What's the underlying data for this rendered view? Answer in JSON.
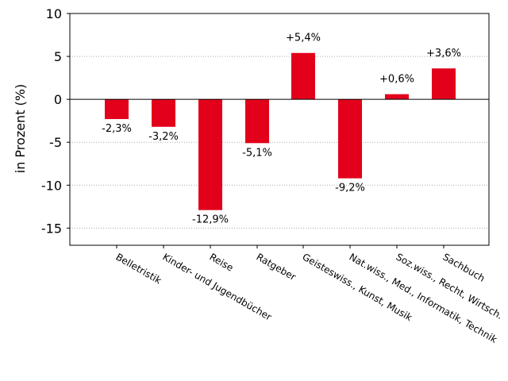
{
  "chart_data": {
    "type": "bar",
    "categories": [
      "Belletristik",
      "Kinder- und Jugendbücher",
      "Reise",
      "Ratgeber",
      "Geisteswiss., Kunst, Musik",
      "Nat.wiss., Med., Informatik, Technik",
      "Soz.wiss., Recht, Wirtsch.",
      "Sachbuch"
    ],
    "values": [
      -2.3,
      -3.2,
      -12.9,
      -5.1,
      5.4,
      -9.2,
      0.6,
      3.6
    ],
    "data_labels": [
      "-2,3%",
      "-3,2%",
      "-12,9%",
      "-5,1%",
      "+5,4%",
      "-9,2%",
      "+0,6%",
      "+3,6%"
    ],
    "title": "",
    "xlabel": "",
    "ylabel": "in Prozent (%)",
    "ylim": [
      -17,
      10
    ],
    "yticks": [
      10,
      5,
      0,
      -5,
      -10,
      -15
    ],
    "ytick_labels": [
      "10",
      "5",
      "0",
      "-5",
      "-10",
      "-15"
    ],
    "grid": "horizontal dotted",
    "legend": "none",
    "bar_color": "#e2001a",
    "grid_color": "#aaaaaa",
    "zero_line_color": "#000000"
  }
}
